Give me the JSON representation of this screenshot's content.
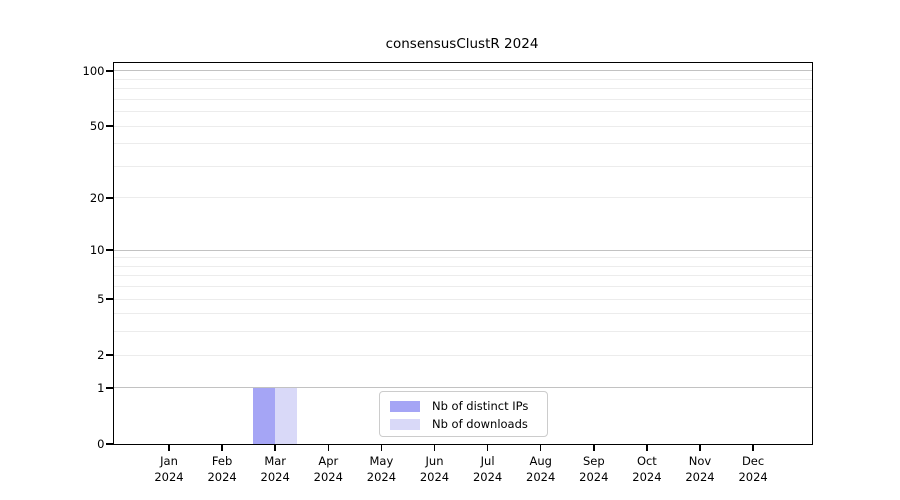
{
  "chart_data": {
    "type": "bar",
    "title": "consensusClustR 2024",
    "categories": [
      "Jan",
      "Feb",
      "Mar",
      "Apr",
      "May",
      "Jun",
      "Jul",
      "Aug",
      "Sep",
      "Oct",
      "Nov",
      "Dec"
    ],
    "category_year": "2024",
    "series": [
      {
        "name": "Nb of distinct IPs",
        "color": "#a5a5f5",
        "values": [
          0,
          0,
          1,
          0,
          0,
          0,
          0,
          0,
          0,
          0,
          0,
          0
        ]
      },
      {
        "name": "Nb of downloads",
        "color": "#d9d9f8",
        "values": [
          0,
          0,
          1,
          0,
          0,
          0,
          0,
          0,
          0,
          0,
          0,
          0
        ]
      }
    ],
    "y_scale": "log10(x+1)",
    "y_tick_values": [
      0,
      1,
      2,
      5,
      10,
      20,
      50,
      100
    ],
    "y_major_gridlines": [
      1,
      10,
      100
    ],
    "y_minor_gridlines": [
      2,
      3,
      4,
      5,
      6,
      7,
      8,
      9,
      20,
      30,
      40,
      50,
      60,
      70,
      80,
      90
    ],
    "ylim": [
      0,
      110
    ],
    "grid": true,
    "legend_position": "lower center inside plot"
  },
  "legend": {
    "items": [
      {
        "label": "Nb of distinct IPs",
        "color": "#a5a5f5"
      },
      {
        "label": "Nb of downloads",
        "color": "#d9d9f8"
      }
    ]
  },
  "colors": {
    "spine": "#000000",
    "major_grid": "#c2c2c2",
    "minor_grid": "#ececec",
    "legend_border": "#cccccc",
    "background": "#ffffff"
  }
}
